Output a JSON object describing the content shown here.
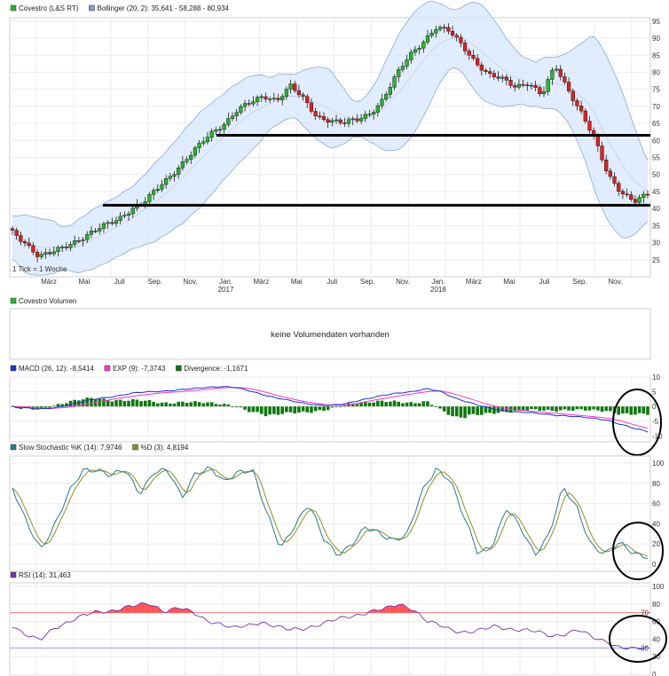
{
  "colors": {
    "up": "#2bb52b",
    "down": "#e02020",
    "band": "#d7e6fb",
    "bandLine": "#7f9fd6",
    "macd": "#2233cc",
    "signal": "#ff33cc",
    "divergence": "#117711",
    "slowK": "#2a7a8a",
    "slowD": "#8f8f2a",
    "rsi": "#7733aa",
    "rsiRef": "#ff6666",
    "rsiFillHigh": "#ff5555",
    "rsiFillLow": "#5555ff"
  },
  "chart_data": [
    {
      "type": "candlestick",
      "id": "price",
      "legend": [
        {
          "label": "Covestro (L&S RT)",
          "color": "#2bb52b"
        },
        {
          "label": "Bollinger (20, 2): 35,641 - 58,288 - 80,934",
          "color": "#7f9fd6"
        }
      ],
      "note": "1 Tick = 1 Woche",
      "ylim": [
        20,
        96
      ],
      "yticks": [
        25,
        30,
        35,
        40,
        45,
        50,
        55,
        60,
        65,
        70,
        75,
        80,
        85,
        90,
        95
      ],
      "xticks": [
        {
          "label": "März",
          "year": ""
        },
        {
          "label": "Mai",
          "year": ""
        },
        {
          "label": "Juli",
          "year": ""
        },
        {
          "label": "Sep.",
          "year": ""
        },
        {
          "label": "Nov.",
          "year": ""
        },
        {
          "label": "Jan.",
          "year": "2017"
        },
        {
          "label": "März",
          "year": ""
        },
        {
          "label": "Mai",
          "year": ""
        },
        {
          "label": "Juli",
          "year": ""
        },
        {
          "label": "Sep.",
          "year": ""
        },
        {
          "label": "Nov.",
          "year": ""
        },
        {
          "label": "Jan.",
          "year": "2018"
        },
        {
          "label": "März",
          "year": ""
        },
        {
          "label": "Mai",
          "year": ""
        },
        {
          "label": "Juli",
          "year": ""
        },
        {
          "label": "Sep.",
          "year": ""
        },
        {
          "label": "Nov.",
          "year": ""
        }
      ],
      "close_anchors": [
        33,
        30,
        26,
        27,
        29,
        31,
        33,
        35,
        37,
        40,
        42,
        46,
        50,
        54,
        58,
        62,
        65,
        69,
        71,
        73,
        72,
        76,
        72,
        67,
        66,
        65,
        66,
        68,
        72,
        79,
        85,
        89,
        93,
        92,
        88,
        83,
        79,
        78,
        76,
        77,
        73,
        82,
        75,
        68,
        60,
        50,
        45,
        42,
        44
      ],
      "support_lines": [
        61.5,
        41
      ]
    },
    {
      "type": "bar",
      "id": "volume",
      "legend": [
        {
          "label": "Covestro Volumen",
          "color": "#2bb52b"
        }
      ],
      "message": "keine Volumendaten vorhanden"
    },
    {
      "type": "line",
      "id": "macd",
      "legend": [
        {
          "label": "MACD (26, 12): -8,5414",
          "color": "#2233cc"
        },
        {
          "label": "EXP (9): -7,3743",
          "color": "#ff33cc"
        },
        {
          "label": "Divergence: -1,1671",
          "color": "#117711"
        }
      ],
      "ylim": [
        -12,
        10
      ],
      "yticks": [
        10,
        5,
        0,
        -5,
        -10
      ],
      "macd_anchors": [
        0,
        -0.5,
        -1,
        -0.5,
        0.5,
        1.5,
        2.5,
        3.2,
        4,
        4.6,
        5,
        5.3,
        5.6,
        6,
        6.5,
        6.8,
        6.5,
        5.5,
        4.3,
        3,
        2,
        1.2,
        0.6,
        0.3,
        0.8,
        2,
        3,
        3.8,
        4.6,
        5.2,
        6,
        5,
        3,
        1.5,
        0,
        -1,
        -1.6,
        -2,
        -2.4,
        -2.8,
        -3.1,
        -3.6,
        -4,
        -4.5,
        -6,
        -7.5,
        -8.5
      ],
      "signal_anchors": [
        0,
        -0.2,
        -0.5,
        -0.6,
        -0.3,
        0.4,
        1.3,
        2.2,
        3,
        3.7,
        4.2,
        4.7,
        5,
        5.4,
        5.8,
        6.3,
        6.5,
        6.2,
        5.3,
        4,
        2.8,
        1.8,
        1,
        0.5,
        0.4,
        1,
        2,
        2.8,
        3.6,
        4.3,
        5,
        5.3,
        4.3,
        2.8,
        1.3,
        0,
        -0.9,
        -1.4,
        -1.8,
        -2.2,
        -2.6,
        -3,
        -3.4,
        -3.9,
        -4.8,
        -6.2,
        -7.4
      ],
      "circle": true
    },
    {
      "type": "line",
      "id": "stochastic",
      "legend": [
        {
          "label": "Slow Stochastic %K (14): 7,9746",
          "color": "#2a7a8a"
        },
        {
          "label": "%D (3): 4,8194",
          "color": "#8f8f2a"
        }
      ],
      "ylim": [
        0,
        100
      ],
      "yticks": [
        100,
        80,
        60,
        40,
        20,
        0
      ],
      "k_anchors": [
        75,
        40,
        15,
        40,
        70,
        92,
        95,
        88,
        92,
        70,
        92,
        92,
        65,
        92,
        95,
        80,
        92,
        95,
        50,
        15,
        40,
        60,
        25,
        10,
        20,
        35,
        30,
        25,
        30,
        70,
        95,
        85,
        45,
        10,
        20,
        55,
        35,
        10,
        30,
        75,
        55,
        20,
        10,
        20,
        12,
        8
      ],
      "circle": true
    },
    {
      "type": "line",
      "id": "rsi",
      "legend": [
        {
          "label": "RSI (14): 31,463",
          "color": "#7733aa"
        }
      ],
      "ylim": [
        0,
        100
      ],
      "yticks": [
        100,
        80,
        60,
        40,
        20,
        0
      ],
      "ref_levels": [
        70,
        30
      ],
      "ref_labels": [
        "70",
        "30"
      ],
      "rsi_anchors": [
        56,
        45,
        38,
        52,
        60,
        66,
        70,
        72,
        76,
        78,
        80,
        72,
        76,
        70,
        62,
        58,
        52,
        55,
        60,
        55,
        50,
        52,
        56,
        60,
        64,
        68,
        72,
        74,
        80,
        75,
        60,
        55,
        50,
        48,
        50,
        55,
        52,
        50,
        48,
        44,
        46,
        50,
        42,
        38,
        30,
        28,
        31
      ],
      "circle": true
    }
  ]
}
